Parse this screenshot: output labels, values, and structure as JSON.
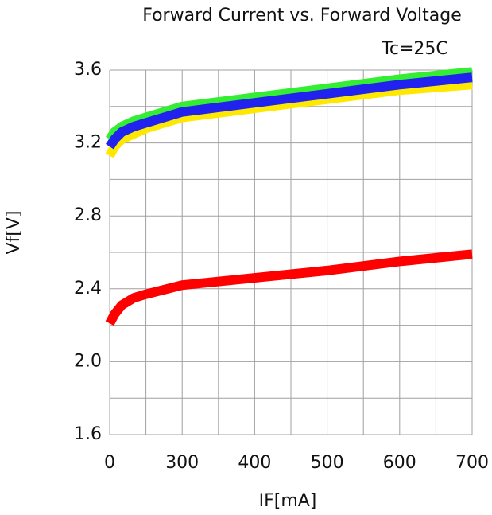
{
  "chart_data": {
    "type": "line",
    "title": "Forward Current vs. Forward Voltage",
    "subtitle": "Tc=25C",
    "x_label": "IF[mA]",
    "y_label": "Vf[V]",
    "x": [
      0,
      20,
      50,
      100,
      150,
      300,
      400,
      500,
      600,
      700
    ],
    "series": [
      {
        "color": "#ffe800",
        "values": [
          3.13,
          3.18,
          3.22,
          3.25,
          3.28,
          3.34,
          3.39,
          3.44,
          3.49,
          3.52
        ]
      },
      {
        "color": "#33ee33",
        "values": [
          3.22,
          3.26,
          3.29,
          3.32,
          3.34,
          3.4,
          3.45,
          3.5,
          3.55,
          3.59
        ]
      },
      {
        "color": "#2222ee",
        "values": [
          3.18,
          3.22,
          3.26,
          3.29,
          3.31,
          3.37,
          3.42,
          3.47,
          3.52,
          3.56
        ]
      },
      {
        "color": "#ff0000",
        "values": [
          2.21,
          2.26,
          2.31,
          2.35,
          2.37,
          2.42,
          2.46,
          2.5,
          2.55,
          2.59
        ]
      }
    ],
    "xlim": [
      0,
      700
    ],
    "xticks": [
      0,
      300,
      400,
      500,
      600,
      700
    ],
    "ylim": [
      1.6,
      3.6
    ],
    "yticks": [
      1.6,
      {
        "value": 2,
        "label": "2.0"
      },
      2.4,
      2.8,
      3.2,
      3.6
    ],
    "grid": true
  }
}
